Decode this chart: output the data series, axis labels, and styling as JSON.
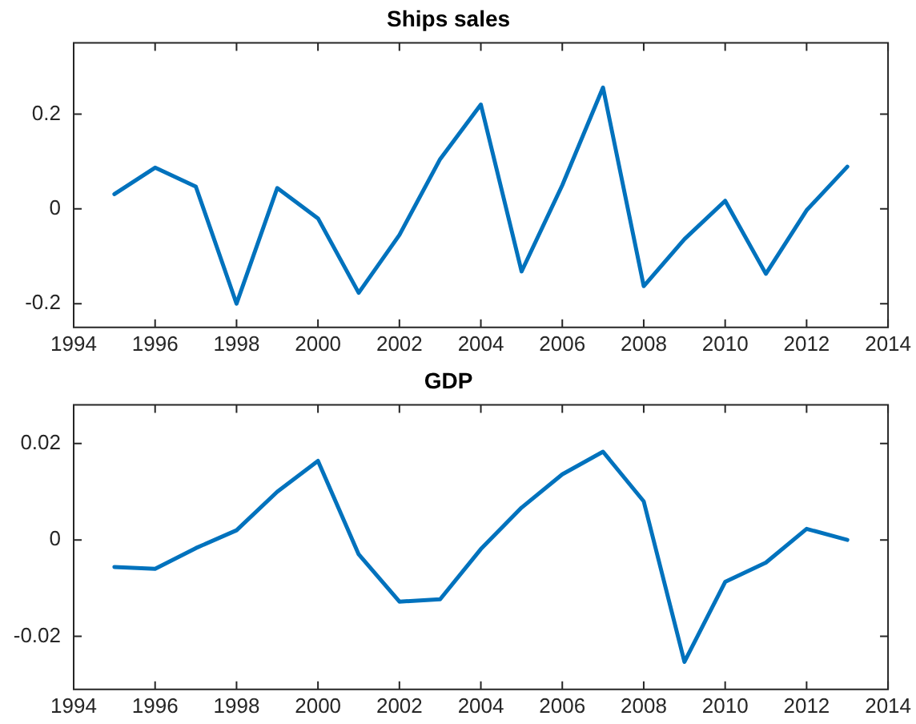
{
  "chart_data": [
    {
      "type": "line",
      "title": "Ships sales",
      "x": [
        1995,
        1996,
        1997,
        1998,
        1999,
        2000,
        2001,
        2002,
        2003,
        2004,
        2005,
        2006,
        2007,
        2008,
        2009,
        2010,
        2011,
        2012,
        2013
      ],
      "series": [
        {
          "color": "#0072bd",
          "values": [
            0.031,
            0.087,
            0.047,
            -0.2,
            0.044,
            -0.02,
            -0.177,
            -0.055,
            0.105,
            0.22,
            -0.132,
            0.05,
            0.256,
            -0.163,
            -0.064,
            0.017,
            -0.137,
            -0.003,
            0.089
          ]
        }
      ],
      "xlim": [
        1994,
        2014
      ],
      "xticks": [
        1994,
        1996,
        1998,
        2000,
        2002,
        2004,
        2006,
        2008,
        2010,
        2012,
        2014
      ],
      "ylim": [
        -0.25,
        0.35
      ],
      "yticks": [
        -0.2,
        0,
        0.2
      ],
      "grid": false,
      "legend": false,
      "marker": "none",
      "line_style": "solid"
    },
    {
      "type": "line",
      "title": "GDP",
      "x": [
        1995,
        1996,
        1997,
        1998,
        1999,
        2000,
        2001,
        2002,
        2003,
        2004,
        2005,
        2006,
        2007,
        2008,
        2009,
        2010,
        2011,
        2012,
        2013
      ],
      "series": [
        {
          "color": "#0072bd",
          "values": [
            -0.0056,
            -0.006,
            -0.0017,
            0.002,
            0.01,
            0.0164,
            -0.003,
            -0.0128,
            -0.0123,
            -0.0019,
            0.0067,
            0.0136,
            0.0183,
            0.008,
            -0.0253,
            -0.0087,
            -0.0047,
            0.0023,
            0
          ]
        }
      ],
      "xlim": [
        1994,
        2014
      ],
      "xticks": [
        1994,
        1996,
        1998,
        2000,
        2002,
        2004,
        2006,
        2008,
        2010,
        2012,
        2014
      ],
      "ylim": [
        -0.031,
        0.028
      ],
      "yticks": [
        -0.02,
        0,
        0.02
      ],
      "grid": false,
      "legend": false,
      "marker": "none",
      "line_style": "solid"
    }
  ]
}
